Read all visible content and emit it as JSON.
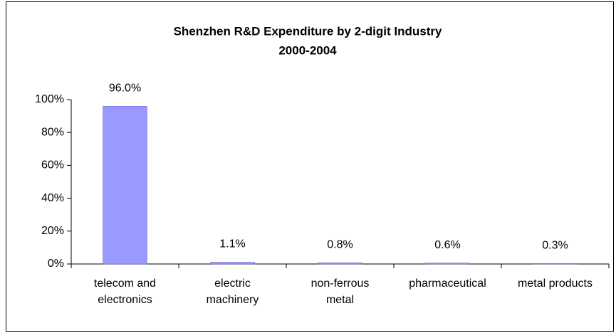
{
  "chart_data": {
    "type": "bar",
    "title": "Shenzhen R&D Expenditure by 2-digit Industry",
    "subtitle": "2000-2004",
    "categories": [
      "telecom and\nelectronics",
      "electric\nmachinery",
      "non-ferrous\nmetal",
      "pharmaceutical",
      "metal products"
    ],
    "values": [
      96.0,
      1.1,
      0.8,
      0.6,
      0.3
    ],
    "value_labels": [
      "96.0%",
      "1.1%",
      "0.8%",
      "0.6%",
      "0.3%"
    ],
    "color": "#9999ff",
    "ylim": [
      0,
      100
    ],
    "yticks": [
      {
        "value": 0,
        "label": "0%"
      },
      {
        "value": 20,
        "label": "20%"
      },
      {
        "value": 40,
        "label": "40%"
      },
      {
        "value": 60,
        "label": "60%"
      },
      {
        "value": 80,
        "label": "80%"
      },
      {
        "value": 100,
        "label": "100%"
      }
    ],
    "grid": false
  }
}
